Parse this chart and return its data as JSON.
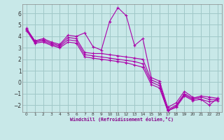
{
  "xlabel": "Windchill (Refroidissement éolien,°C)",
  "bg_color": "#c8e8e8",
  "grid_color": "#a0c8c8",
  "line_color": "#aa00aa",
  "xlim": [
    -0.5,
    23.5
  ],
  "ylim": [
    -2.6,
    6.8
  ],
  "xticks": [
    0,
    1,
    2,
    3,
    4,
    5,
    6,
    7,
    8,
    9,
    10,
    11,
    12,
    13,
    14,
    15,
    16,
    17,
    18,
    19,
    20,
    21,
    22,
    23
  ],
  "yticks": [
    -2,
    -1,
    0,
    1,
    2,
    3,
    4,
    5,
    6
  ],
  "series": [
    [
      4.7,
      3.6,
      3.8,
      3.5,
      3.3,
      4.1,
      4.0,
      4.3,
      3.1,
      2.8,
      5.3,
      6.5,
      5.8,
      3.2,
      3.8,
      0.4,
      0.1,
      -2.2,
      -1.8,
      -0.8,
      -1.3,
      -1.5,
      -2.0,
      -1.4
    ],
    [
      4.6,
      3.6,
      3.7,
      3.4,
      3.2,
      3.9,
      3.8,
      2.6,
      2.5,
      2.5,
      2.4,
      2.3,
      2.2,
      2.1,
      2.0,
      0.2,
      -0.1,
      -2.4,
      -2.0,
      -1.0,
      -1.4,
      -1.2,
      -1.3,
      -1.4
    ],
    [
      4.6,
      3.5,
      3.6,
      3.3,
      3.1,
      3.7,
      3.6,
      2.4,
      2.3,
      2.2,
      2.1,
      2.0,
      1.9,
      1.8,
      1.6,
      0.0,
      -0.3,
      -2.5,
      -2.1,
      -1.1,
      -1.5,
      -1.3,
      -1.5,
      -1.5
    ],
    [
      4.5,
      3.4,
      3.5,
      3.2,
      3.0,
      3.5,
      3.4,
      2.2,
      2.1,
      2.0,
      1.9,
      1.8,
      1.7,
      1.5,
      1.3,
      -0.2,
      -0.5,
      -2.5,
      -2.2,
      -1.2,
      -1.6,
      -1.5,
      -1.7,
      -1.6
    ]
  ]
}
